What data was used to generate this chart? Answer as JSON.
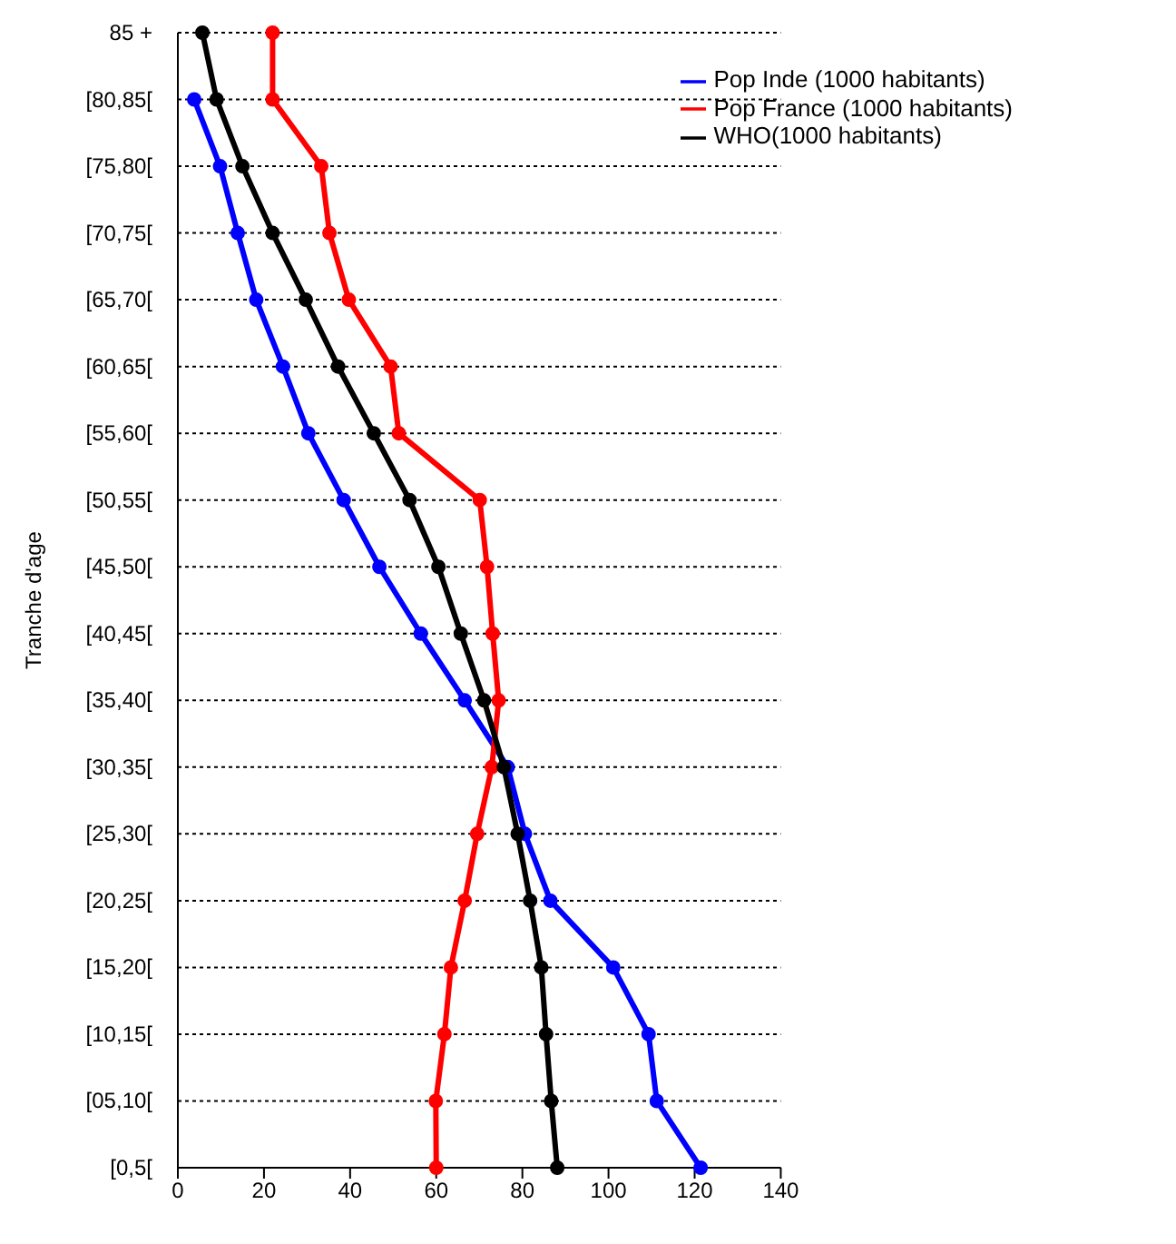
{
  "chart_data": {
    "type": "line",
    "ylabel": "Tranche d'age",
    "categories": [
      "85 +",
      "[80,85[",
      "[75,80[",
      "[70,75[",
      "[65,70[",
      "[60,65[",
      "[55,60[",
      "[50,55[",
      "[45,50[",
      "[40,45[",
      "[35,40[",
      "[30,35[",
      "[25,30[",
      "[20,25[",
      "[15,20[",
      "[10,15[",
      "[05,10[",
      "[0,5["
    ],
    "series": [
      {
        "name": "Pop Inde (1000 habitants)",
        "color": "#0000ff",
        "values": [
          null,
          3.8,
          9.8,
          13.9,
          18.2,
          24.4,
          30.3,
          38.5,
          46.8,
          56.4,
          66.6,
          76.6,
          80.6,
          86.5,
          101.1,
          109.3,
          111.2,
          121.4
        ]
      },
      {
        "name": "Pop France (1000 habitants)",
        "color": "#ff0000",
        "values": [
          22,
          22,
          33.3,
          35.2,
          39.7,
          49.4,
          51.3,
          70.1,
          71.8,
          73.1,
          74.5,
          72.9,
          69.5,
          66.6,
          63.4,
          61.9,
          59.9,
          60
        ]
      },
      {
        "name": "WHO(1000 habitants)",
        "color": "#000000",
        "values": [
          5.7,
          9,
          15,
          22,
          29.7,
          37.2,
          45.5,
          53.8,
          60.5,
          65.7,
          71.1,
          75.7,
          78.9,
          81.8,
          84.4,
          85.5,
          86.7,
          88.1
        ]
      }
    ],
    "xlim": [
      0,
      140
    ],
    "xticks": [
      0,
      20,
      40,
      60,
      80,
      100,
      120,
      140
    ],
    "orientation": "horizontal",
    "grid": "y",
    "legend": "top right",
    "marker": "circle",
    "line_style": "solid"
  }
}
